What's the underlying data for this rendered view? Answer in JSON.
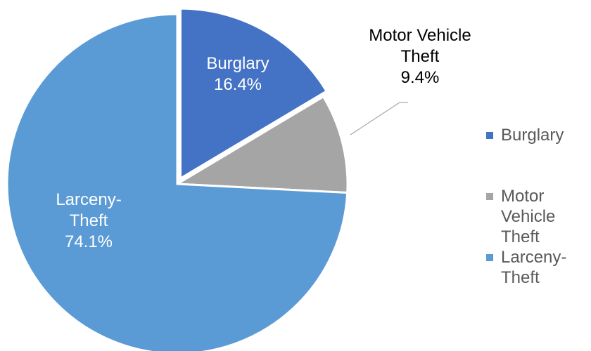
{
  "chart_data": {
    "type": "pie",
    "categories": [
      "Burglary",
      "Motor Vehicle Theft",
      "Larceny-Theft"
    ],
    "values": [
      16.4,
      9.4,
      74.1
    ],
    "value_unit": "%",
    "data_labels": [
      {
        "lines": [
          "Burglary",
          "16.4%"
        ]
      },
      {
        "lines": [
          "Motor Vehicle",
          "Theft",
          "9.4%"
        ]
      },
      {
        "lines": [
          "Larceny-",
          "Theft",
          "74.1%"
        ]
      }
    ],
    "colors": [
      "#4472C4",
      "#A5A5A5",
      "#5B9BD5"
    ],
    "exploded_slice": "Burglary",
    "legend": {
      "position": "right",
      "items": [
        {
          "lines": [
            "Burglary"
          ],
          "color": "#4472C4"
        },
        {
          "lines": [
            "Motor",
            "Vehicle",
            "Theft"
          ],
          "color": "#A5A5A5"
        },
        {
          "lines": [
            "Larceny-",
            "Theft"
          ],
          "color": "#5B9BD5"
        }
      ]
    }
  }
}
